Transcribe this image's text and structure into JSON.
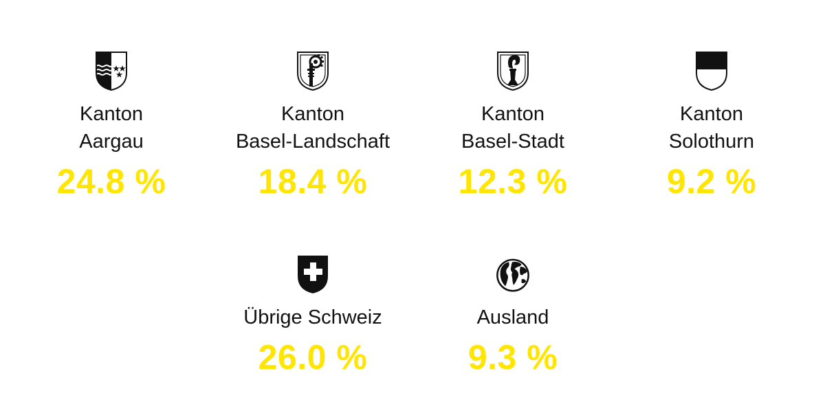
{
  "accent_color": "#ffe500",
  "items": [
    {
      "line1": "Kanton",
      "line2": "Aargau",
      "value": "24.8 %",
      "icon": "aargau-coat-of-arms-icon"
    },
    {
      "line1": "Kanton",
      "line2": "Basel-Landschaft",
      "value": "18.4 %",
      "icon": "basel-landschaft-coat-of-arms-icon"
    },
    {
      "line1": "Kanton",
      "line2": "Basel-Stadt",
      "value": "12.3 %",
      "icon": "basel-stadt-coat-of-arms-icon"
    },
    {
      "line1": "Kanton",
      "line2": "Solothurn",
      "value": "9.2 %",
      "icon": "solothurn-coat-of-arms-icon"
    },
    {
      "line1": "Übrige Schweiz",
      "value": "26.0 %",
      "icon": "swiss-cross-shield-icon"
    },
    {
      "line1": "Ausland",
      "value": "9.3 %",
      "icon": "globe-icon"
    }
  ]
}
